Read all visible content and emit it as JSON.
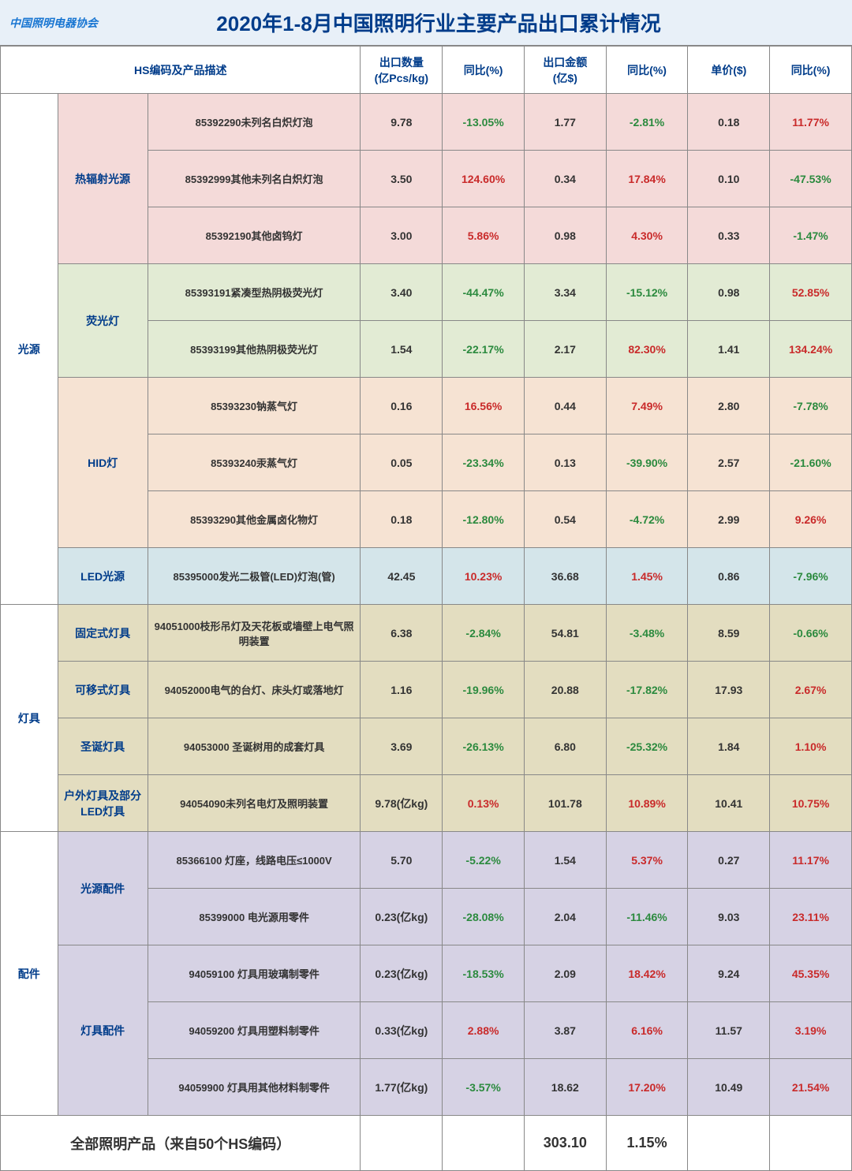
{
  "colors": {
    "header_bg": "#e8f0f8",
    "title_color": "#003c8a",
    "border": "#888888",
    "positive": "#c92a2a",
    "negative": "#2b8a3e",
    "bg_pink": "#f4dad9",
    "bg_green": "#e2ebd4",
    "bg_orange": "#f6e3d3",
    "bg_blue": "#d4e5ea",
    "bg_tan": "#e3ddc0",
    "bg_lavender": "#d6d2e4"
  },
  "logo_text": "中国照明电器协会",
  "title": "2020年1-8月中国照明行业主要产品出口累计情况",
  "columns": {
    "hs": "HS编码及产品描述",
    "qty": "出口数量\n(亿Pcs/kg)",
    "qty_yoy": "同比(%)",
    "amt": "出口金额\n(亿$)",
    "amt_yoy": "同比(%)",
    "price": "单价($)",
    "price_yoy": "同比(%)"
  },
  "groups": [
    {
      "cat1": "光源",
      "subgroups": [
        {
          "cat2": "热辐射光源",
          "bg": "#f4dad9",
          "rows": [
            {
              "desc": "85392290未列名白炽灯泡",
              "qty": "9.78",
              "qty_yoy": "-13.05%",
              "amt": "1.77",
              "amt_yoy": "-2.81%",
              "price": "0.18",
              "price_yoy": "11.77%"
            },
            {
              "desc": "85392999其他未列名白炽灯泡",
              "qty": "3.50",
              "qty_yoy": "124.60%",
              "amt": "0.34",
              "amt_yoy": "17.84%",
              "price": "0.10",
              "price_yoy": "-47.53%"
            },
            {
              "desc": "85392190其他卤钨灯",
              "qty": "3.00",
              "qty_yoy": "5.86%",
              "amt": "0.98",
              "amt_yoy": "4.30%",
              "price": "0.33",
              "price_yoy": "-1.47%"
            }
          ]
        },
        {
          "cat2": "荧光灯",
          "bg": "#e2ebd4",
          "rows": [
            {
              "desc": "85393191紧凑型热阴极荧光灯",
              "qty": "3.40",
              "qty_yoy": "-44.47%",
              "amt": "3.34",
              "amt_yoy": "-15.12%",
              "price": "0.98",
              "price_yoy": "52.85%"
            },
            {
              "desc": "85393199其他热阴极荧光灯",
              "qty": "1.54",
              "qty_yoy": "-22.17%",
              "amt": "2.17",
              "amt_yoy": "82.30%",
              "price": "1.41",
              "price_yoy": "134.24%"
            }
          ]
        },
        {
          "cat2": "HID灯",
          "bg": "#f6e3d3",
          "rows": [
            {
              "desc": "85393230钠蒸气灯",
              "qty": "0.16",
              "qty_yoy": "16.56%",
              "amt": "0.44",
              "amt_yoy": "7.49%",
              "price": "2.80",
              "price_yoy": "-7.78%"
            },
            {
              "desc": "85393240汞蒸气灯",
              "qty": "0.05",
              "qty_yoy": "-23.34%",
              "amt": "0.13",
              "amt_yoy": "-39.90%",
              "price": "2.57",
              "price_yoy": "-21.60%"
            },
            {
              "desc": "85393290其他金属卤化物灯",
              "qty": "0.18",
              "qty_yoy": "-12.80%",
              "amt": "0.54",
              "amt_yoy": "-4.72%",
              "price": "2.99",
              "price_yoy": "9.26%"
            }
          ]
        },
        {
          "cat2": "LED光源",
          "bg": "#d4e5ea",
          "rows": [
            {
              "desc": "85395000发光二极管(LED)灯泡(管)",
              "qty": "42.45",
              "qty_yoy": "10.23%",
              "amt": "36.68",
              "amt_yoy": "1.45%",
              "price": "0.86",
              "price_yoy": "-7.96%"
            }
          ]
        }
      ]
    },
    {
      "cat1": "灯具",
      "subgroups": [
        {
          "cat2": "固定式灯具",
          "bg": "#e3ddc0",
          "rows": [
            {
              "desc": "94051000枝形吊灯及天花板或墙壁上电气照明装置",
              "qty": "6.38",
              "qty_yoy": "-2.84%",
              "amt": "54.81",
              "amt_yoy": "-3.48%",
              "price": "8.59",
              "price_yoy": "-0.66%"
            }
          ]
        },
        {
          "cat2": "可移式灯具",
          "bg": "#e3ddc0",
          "rows": [
            {
              "desc": "94052000电气的台灯、床头灯或落地灯",
              "qty": "1.16",
              "qty_yoy": "-19.96%",
              "amt": "20.88",
              "amt_yoy": "-17.82%",
              "price": "17.93",
              "price_yoy": "2.67%"
            }
          ]
        },
        {
          "cat2": "圣诞灯具",
          "bg": "#e3ddc0",
          "rows": [
            {
              "desc": "94053000 圣诞树用的成套灯具",
              "qty": "3.69",
              "qty_yoy": "-26.13%",
              "amt": "6.80",
              "amt_yoy": "-25.32%",
              "price": "1.84",
              "price_yoy": "1.10%"
            }
          ]
        },
        {
          "cat2": "户外灯具及部分LED灯具",
          "bg": "#e3ddc0",
          "rows": [
            {
              "desc": "94054090未列名电灯及照明装置",
              "qty": "9.78(亿kg)",
              "qty_yoy": "0.13%",
              "amt": "101.78",
              "amt_yoy": "10.89%",
              "price": "10.41",
              "price_yoy": "10.75%"
            }
          ]
        }
      ]
    },
    {
      "cat1": "配件",
      "subgroups": [
        {
          "cat2": "光源配件",
          "bg": "#d6d2e4",
          "rows": [
            {
              "desc": "85366100 灯座，线路电压≤1000V",
              "qty": "5.70",
              "qty_yoy": "-5.22%",
              "amt": "1.54",
              "amt_yoy": "5.37%",
              "price": "0.27",
              "price_yoy": "11.17%"
            },
            {
              "desc": "85399000 电光源用零件",
              "qty": "0.23(亿kg)",
              "qty_yoy": "-28.08%",
              "amt": "2.04",
              "amt_yoy": "-11.46%",
              "price": "9.03",
              "price_yoy": "23.11%"
            }
          ]
        },
        {
          "cat2": "灯具配件",
          "bg": "#d6d2e4",
          "rows": [
            {
              "desc": "94059100 灯具用玻璃制零件",
              "qty": "0.23(亿kg)",
              "qty_yoy": "-18.53%",
              "amt": "2.09",
              "amt_yoy": "18.42%",
              "price": "9.24",
              "price_yoy": "45.35%"
            },
            {
              "desc": "94059200 灯具用塑料制零件",
              "qty": "0.33(亿kg)",
              "qty_yoy": "2.88%",
              "amt": "3.87",
              "amt_yoy": "6.16%",
              "price": "11.57",
              "price_yoy": "3.19%"
            },
            {
              "desc": "94059900 灯具用其他材料制零件",
              "qty": "1.77(亿kg)",
              "qty_yoy": "-3.57%",
              "amt": "18.62",
              "amt_yoy": "17.20%",
              "price": "10.49",
              "price_yoy": "21.54%"
            }
          ]
        }
      ]
    }
  ],
  "footer": {
    "label": "全部照明产品（来自50个HS编码）",
    "amt": "303.10",
    "amt_yoy": "1.15%"
  }
}
